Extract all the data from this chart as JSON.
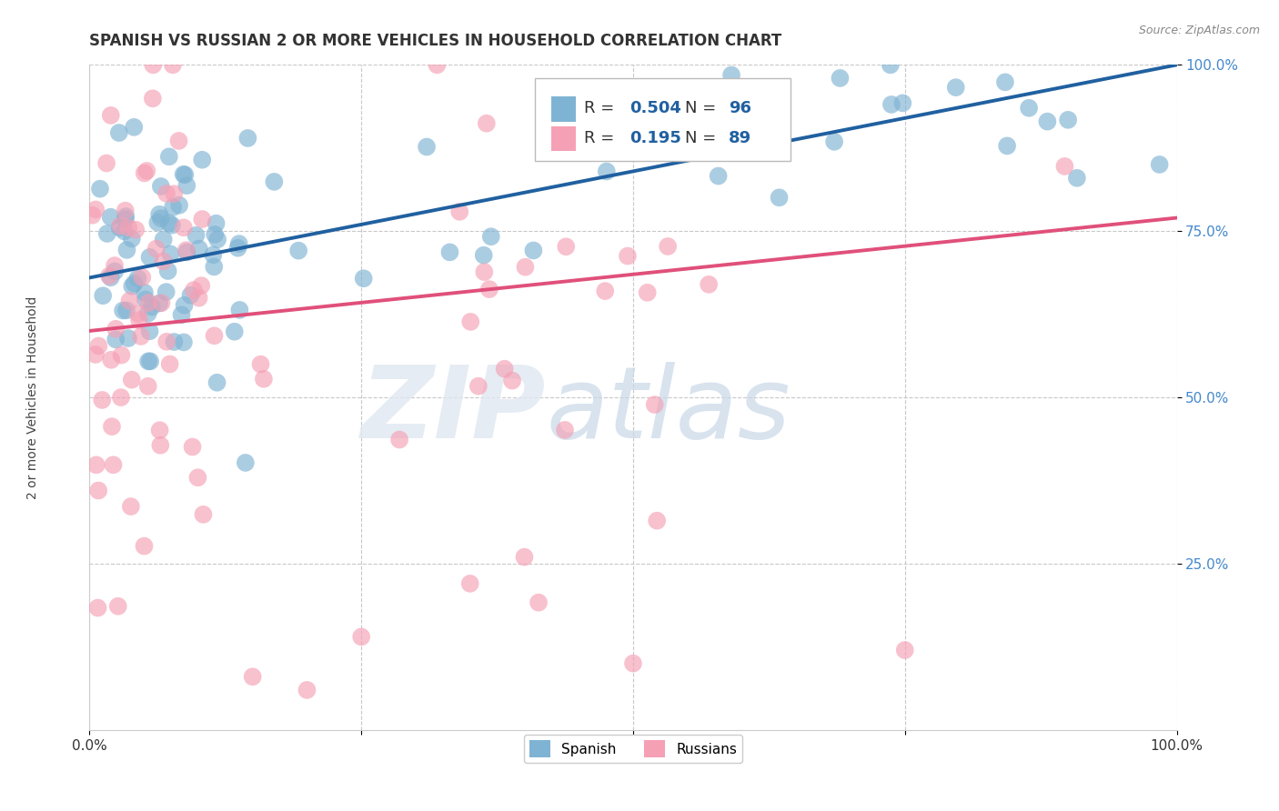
{
  "title": "SPANISH VS RUSSIAN 2 OR MORE VEHICLES IN HOUSEHOLD CORRELATION CHART",
  "source": "Source: ZipAtlas.com",
  "ylabel": "2 or more Vehicles in Household",
  "xlim": [
    0.0,
    1.0
  ],
  "ylim": [
    0.0,
    1.0
  ],
  "xtick_labels": [
    "0.0%",
    "",
    "",
    "",
    "100.0%"
  ],
  "xtick_positions": [
    0.0,
    0.25,
    0.5,
    0.75,
    1.0
  ],
  "ytick_labels": [
    "25.0%",
    "50.0%",
    "75.0%",
    "100.0%"
  ],
  "ytick_positions": [
    0.25,
    0.5,
    0.75,
    1.0
  ],
  "spanish_color": "#7fb3d3",
  "russian_color": "#f5a0b5",
  "spanish_R": 0.504,
  "spanish_N": 96,
  "russian_R": 0.195,
  "russian_N": 89,
  "trend_spanish_color": "#2060a0",
  "trend_russian_color": "#e0507a",
  "background_color": "#ffffff",
  "grid_color": "#c8c8c8",
  "title_fontsize": 12,
  "axis_label_fontsize": 10,
  "tick_fontsize": 11,
  "ytick_color": "#4488cc",
  "sp_trend_start_y": 0.68,
  "sp_trend_end_y": 1.0,
  "ru_trend_start_y": 0.6,
  "ru_trend_end_y": 0.77
}
